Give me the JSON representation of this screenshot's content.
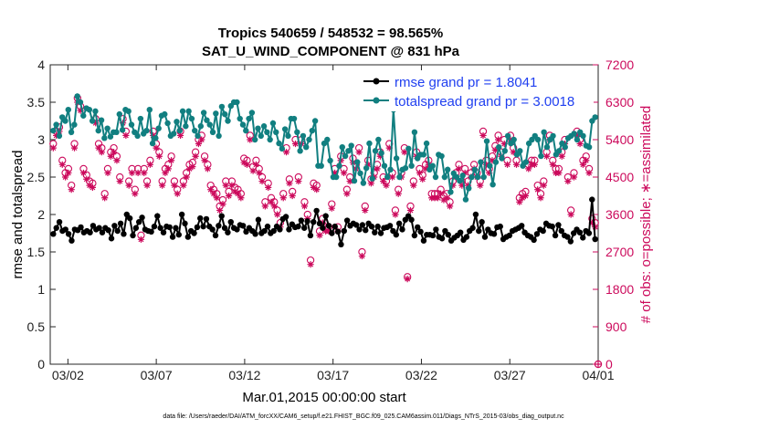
{
  "chart_data": {
    "type": "line",
    "title": "Tropics 540659 / 548532 = 98.565%",
    "subtitle": "SAT_U_WIND_COMPONENT @ 831 hPa",
    "xlabel": "Mar.01,2015 00:00:00 start",
    "ylabel_left": "rmse and totalspread",
    "ylabel_right": "# of obs: o=possible; ∗=assimilated",
    "footnote": "data file: /Users/raeder/DAI/ATM_forcXX/CAM6_setup/f.e21.FHIST_BGC.f09_025.CAM6assim.011/Diags_NTrS_2015-03/obs_diag_output.nc",
    "x_range_days": [
      0,
      31
    ],
    "ylim_left": [
      0,
      4
    ],
    "ylim_right": [
      0,
      7200
    ],
    "xtick_days": [
      1,
      6,
      11,
      16,
      21,
      26,
      31
    ],
    "xtick_labels": [
      "03/02",
      "03/07",
      "03/12",
      "03/17",
      "03/22",
      "03/27",
      "04/01"
    ],
    "ytick_left": [
      "0",
      "0.5",
      "1",
      "1.5",
      "2",
      "2.5",
      "3",
      "3.5",
      "4"
    ],
    "ytick_right": [
      "0",
      "900",
      "1800",
      "2700",
      "3600",
      "4500",
      "5400",
      "6300",
      "7200"
    ],
    "series": [
      {
        "name": "rmse",
        "legend": "rmse grand pr = 1.8041",
        "color": "#000000",
        "axis": "left",
        "values": [
          1.74,
          1.82,
          1.9,
          1.78,
          1.8,
          1.74,
          1.65,
          1.8,
          1.79,
          1.83,
          1.76,
          1.78,
          1.76,
          1.85,
          1.8,
          1.82,
          1.76,
          1.82,
          1.79,
          1.68,
          1.85,
          1.78,
          1.88,
          1.74,
          2.0,
          1.95,
          1.72,
          1.82,
          1.9,
          1.96,
          1.8,
          1.78,
          1.77,
          1.84,
          1.98,
          1.82,
          1.76,
          1.84,
          1.83,
          1.7,
          1.82,
          1.73,
          2.0,
          1.88,
          1.7,
          1.78,
          1.75,
          1.83,
          1.95,
          1.84,
          1.94,
          1.84,
          1.8,
          1.72,
          1.85,
          1.98,
          1.82,
          1.76,
          1.9,
          1.82,
          1.8,
          1.86,
          1.85,
          1.77,
          1.82,
          1.78,
          1.74,
          1.93,
          1.75,
          1.78,
          1.84,
          1.75,
          1.78,
          1.84,
          1.8,
          1.94,
          1.97,
          1.8,
          1.87,
          1.83,
          1.84,
          1.92,
          1.82,
          1.91,
          1.72,
          1.9,
          2.05,
          1.88,
          1.82,
          1.98,
          1.85,
          1.75,
          1.84,
          1.77,
          1.6,
          1.78,
          1.92,
          1.85,
          1.88,
          1.86,
          1.8,
          1.86,
          1.79,
          1.88,
          1.84,
          1.76,
          1.84,
          1.75,
          1.82,
          1.83,
          1.85,
          1.78,
          1.73,
          1.88,
          1.8,
          1.93,
          1.98,
          1.93,
          1.72,
          1.83,
          1.77,
          1.65,
          1.73,
          1.73,
          1.72,
          1.8,
          1.7,
          1.68,
          1.78,
          1.73,
          1.65,
          1.69,
          1.72,
          1.76,
          1.66,
          1.7,
          1.78,
          1.82,
          2.0,
          1.78,
          1.9,
          1.7,
          1.8,
          1.75,
          1.74,
          1.83,
          1.84,
          1.67,
          1.7,
          1.72,
          1.78,
          1.8,
          1.82,
          1.85,
          1.76,
          1.72,
          1.7,
          1.66,
          1.74,
          1.8,
          1.78,
          1.88,
          1.85,
          1.84,
          1.72,
          1.86,
          1.78,
          1.72,
          1.7,
          1.64,
          1.75,
          1.8,
          1.76,
          1.69,
          1.78,
          1.75,
          2.2,
          1.67
        ]
      },
      {
        "name": "totalspread",
        "legend": "totalspread grand pr = 3.0018",
        "color": "#117f80",
        "axis": "left",
        "values": [
          3.12,
          3.2,
          3.05,
          3.3,
          3.25,
          3.4,
          3.1,
          3.2,
          3.58,
          3.5,
          3.32,
          3.42,
          3.4,
          3.25,
          3.38,
          3.12,
          3.26,
          3.02,
          3.15,
          3.04,
          3.1,
          3.1,
          3.34,
          3.13,
          3.4,
          3.38,
          3.2,
          3.1,
          3.05,
          3.28,
          3.08,
          3.12,
          3.4,
          2.95,
          3.02,
          3.15,
          3.32,
          3.34,
          3.22,
          3.05,
          3.08,
          3.24,
          3.12,
          3.38,
          3.18,
          3.38,
          3.28,
          3.12,
          3.05,
          3.18,
          3.36,
          3.26,
          3.2,
          3.1,
          3.35,
          3.05,
          3.44,
          3.34,
          3.25,
          3.45,
          3.5,
          3.5,
          3.28,
          3.2,
          3.12,
          3.28,
          3.36,
          3.0,
          3.15,
          3.05,
          3.18,
          3.1,
          3.0,
          3.22,
          3.1,
          2.95,
          2.88,
          3.14,
          3.05,
          3.28,
          3.28,
          3.1,
          2.85,
          3.05,
          2.9,
          3.0,
          3.12,
          3.25,
          2.65,
          2.65,
          2.95,
          3.0,
          2.72,
          2.5,
          2.5,
          2.65,
          2.9,
          2.78,
          2.85,
          2.92,
          2.45,
          2.7,
          2.55,
          2.42,
          2.62,
          2.95,
          2.48,
          2.85,
          3.0,
          2.82,
          2.65,
          2.5,
          2.6,
          3.4,
          2.75,
          2.5,
          2.6,
          2.62,
          2.88,
          2.65,
          3.1,
          2.75,
          2.8,
          2.8,
          2.95,
          2.6,
          2.65,
          2.5,
          2.8,
          2.78,
          2.5,
          2.6,
          2.3,
          2.55,
          2.5,
          2.45,
          2.52,
          2.2,
          2.35,
          2.5,
          2.6,
          2.5,
          2.7,
          2.5,
          2.98,
          2.65,
          2.4,
          2.7,
          2.9,
          2.75,
          2.85,
          3.05,
          2.95,
          3.0,
          2.8,
          2.85,
          2.65,
          2.7,
          2.95,
          3.0,
          3.05,
          3.0,
          2.78,
          3.1,
          2.9,
          3.0,
          3.05,
          2.8,
          2.85,
          2.95,
          2.9,
          3.02,
          3.05,
          3.08,
          3.0,
          3.1,
          3.05,
          2.92,
          2.9,
          3.25,
          3.3
        ]
      },
      {
        "name": "nobs_assimilated",
        "legend": "",
        "color": "#cc0a5c",
        "axis": "right",
        "values": [
          5200,
          5500,
          5600,
          4800,
          4500,
          4600,
          4200,
          5200,
          6300,
          6100,
          4600,
          4450,
          4300,
          4250,
          5800,
          5200,
          5100,
          4000,
          4600,
          5000,
          5100,
          4900,
          4400,
          5800,
          5500,
          4300,
          4600,
          4100,
          4600,
          3000,
          4600,
          4300,
          4800,
          5500,
          5200,
          5000,
          4300,
          4600,
          4700,
          4900,
          4300,
          4100,
          5500,
          4300,
          4500,
          4700,
          4750,
          5000,
          5300,
          5400,
          4900,
          4700,
          4200,
          4100,
          4000,
          3700,
          3850,
          4300,
          4050,
          4300,
          4150,
          4100,
          4000,
          4850,
          4800,
          5400,
          4650,
          4800,
          4600,
          4400,
          3800,
          4250,
          3900,
          3800,
          3600,
          3300,
          4000,
          5100,
          4350,
          4050,
          5300,
          4400,
          5300,
          3800,
          3500,
          2400,
          4250,
          4200,
          3100,
          3400,
          3200,
          3200,
          3750,
          4600,
          3200,
          4900,
          4600,
          4100,
          4400,
          4850,
          4700,
          5100,
          2600,
          3700,
          4800,
          4350,
          4500,
          4700,
          5000,
          4400,
          4300,
          5200,
          4500,
          3600,
          4100,
          4500,
          5100,
          2050,
          3700,
          4300,
          5000,
          4600,
          4450,
          4700,
          4800,
          4000,
          4000,
          4000,
          4100,
          3950,
          4000,
          3800,
          4300,
          4500,
          4700,
          4300,
          4600,
          4300,
          4500,
          4700,
          4500,
          4300,
          5500,
          4800,
          4600,
          4900,
          5150,
          5400,
          5000,
          5300,
          4800,
          5400,
          5100,
          4800,
          3900,
          4000,
          4050,
          4700,
          4800,
          4800,
          4200,
          4000,
          4300,
          5000,
          5400,
          4800,
          4600,
          4600,
          5000,
          5300,
          4400,
          3600,
          4500,
          5500,
          5300,
          4800,
          4900,
          4600,
          3400,
          3300
        ]
      },
      {
        "name": "nobs_possible",
        "legend": "",
        "color": "#cc0a5c",
        "axis": "right",
        "values": [
          5300,
          5600,
          5700,
          4900,
          4600,
          4700,
          4300,
          5300,
          6400,
          6200,
          4700,
          4550,
          4400,
          4350,
          5900,
          5300,
          5200,
          4100,
          4700,
          5100,
          5200,
          5000,
          4500,
          5900,
          5600,
          4400,
          4700,
          4200,
          4700,
          3100,
          4700,
          4400,
          4900,
          5600,
          5300,
          5100,
          4400,
          4700,
          4800,
          5000,
          4400,
          4200,
          5600,
          4400,
          4600,
          4800,
          4850,
          5100,
          5400,
          5500,
          5000,
          4800,
          4300,
          4200,
          4100,
          3800,
          3950,
          4400,
          4150,
          4400,
          4250,
          4200,
          4100,
          4950,
          4900,
          5500,
          4750,
          4900,
          4700,
          4500,
          3900,
          4350,
          4000,
          3900,
          3700,
          3400,
          4100,
          5200,
          4450,
          4150,
          5400,
          4500,
          5400,
          3900,
          3600,
          2500,
          4350,
          4300,
          3200,
          3500,
          3300,
          3300,
          3850,
          4700,
          3300,
          5000,
          4700,
          4200,
          4500,
          4950,
          4800,
          5200,
          2700,
          3800,
          4900,
          4450,
          4600,
          4800,
          5100,
          4500,
          4400,
          5300,
          4600,
          3700,
          4200,
          4600,
          5200,
          2100,
          3800,
          4400,
          5100,
          4700,
          4550,
          4800,
          4900,
          4100,
          4100,
          4100,
          4200,
          4050,
          4100,
          3900,
          4400,
          4600,
          4800,
          4400,
          4700,
          4400,
          4600,
          4800,
          4600,
          4400,
          5600,
          4900,
          4700,
          5000,
          5250,
          5500,
          5100,
          5400,
          4900,
          5500,
          5200,
          4900,
          4000,
          4100,
          4150,
          4800,
          4900,
          4900,
          4300,
          4100,
          4400,
          5100,
          5500,
          4900,
          4700,
          4700,
          5100,
          5400,
          4500,
          3700,
          4600,
          5600,
          5400,
          4900,
          5000,
          4700,
          3500,
          3400
        ]
      }
    ]
  }
}
